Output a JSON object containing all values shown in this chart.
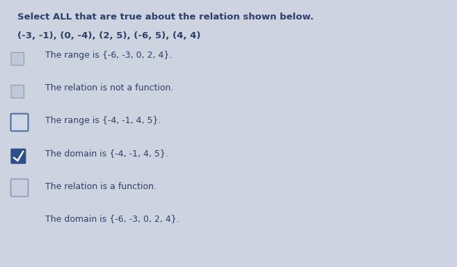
{
  "title_line1": "Select ALL that are true about the relation shown below.",
  "title_line2": "(-3, -1), (0, -4), (2, 5), (-6, 5), (4, 4)",
  "options": [
    "The range is {-6, -3, 0, 2, 4}.",
    "The relation is not a function.",
    "The range is {-4, -1, 4, 5}.",
    "The domain is {-4, -1, 4, 5}.",
    "The relation is a function.",
    "The domain is {-6, -3, 0, 2, 4}."
  ],
  "has_checkbox": [
    true,
    true,
    true,
    true,
    true,
    false
  ],
  "checked": [
    false,
    false,
    false,
    true,
    false,
    false
  ],
  "checkbox_styles": [
    "small_gray",
    "small_gray",
    "blue_outline",
    "filled_blue",
    "gray_outline",
    "none"
  ],
  "bg_color": "#cdd4e0",
  "text_color": "#2c3e6b",
  "title_fontsize": 9.5,
  "option_fontsize": 9.0,
  "checked_box_color": "#2c4f8a",
  "unchecked_fill_1": "#bec7d6",
  "unchecked_fill_2": "#c5cedc",
  "blue_outline_color": "#4a6fa0",
  "gray_outline_color": "#8a9ab5"
}
